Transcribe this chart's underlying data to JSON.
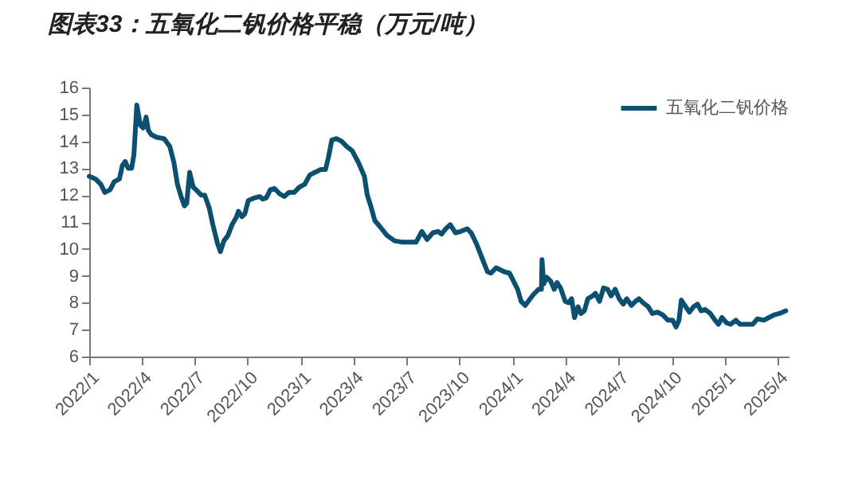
{
  "chart_data": {
    "type": "line",
    "title": "图表33：五氧化二钒价格平稳（万元/吨）",
    "x": [
      "2022-01-01",
      "2022-01-12",
      "2022-01-21",
      "2022-01-28",
      "2022-02-06",
      "2022-02-13",
      "2022-02-22",
      "2022-02-27",
      "2022-03-04",
      "2022-03-09",
      "2022-03-15",
      "2022-03-19",
      "2022-03-24",
      "2022-03-30",
      "2022-04-04",
      "2022-04-09",
      "2022-04-13",
      "2022-04-18",
      "2022-04-27",
      "2022-05-10",
      "2022-05-20",
      "2022-05-27",
      "2022-06-02",
      "2022-06-09",
      "2022-06-14",
      "2022-06-18",
      "2022-06-23",
      "2022-06-29",
      "2022-07-04",
      "2022-07-13",
      "2022-07-19",
      "2022-07-27",
      "2022-08-02",
      "2022-08-10",
      "2022-08-15",
      "2022-08-21",
      "2022-08-28",
      "2022-09-04",
      "2022-09-12",
      "2022-09-15",
      "2022-09-21",
      "2022-09-26",
      "2022-10-02",
      "2022-10-13",
      "2022-10-22",
      "2022-10-27",
      "2022-11-02",
      "2022-11-09",
      "2022-11-16",
      "2022-11-25",
      "2022-12-03",
      "2022-12-11",
      "2022-12-20",
      "2022-12-29",
      "2023-01-07",
      "2023-01-16",
      "2023-01-25",
      "2023-02-04",
      "2023-02-12",
      "2023-02-17",
      "2023-02-23",
      "2023-03-03",
      "2023-03-12",
      "2023-03-21",
      "2023-03-30",
      "2023-04-10",
      "2023-04-20",
      "2023-04-25",
      "2023-05-01",
      "2023-05-08",
      "2023-05-18",
      "2023-05-29",
      "2023-06-11",
      "2023-06-25",
      "2023-07-18",
      "2023-07-28",
      "2023-08-06",
      "2023-08-16",
      "2023-08-25",
      "2023-08-31",
      "2023-09-07",
      "2023-09-15",
      "2023-09-24",
      "2023-10-03",
      "2023-10-14",
      "2023-10-21",
      "2023-10-30",
      "2023-11-08",
      "2023-11-18",
      "2023-11-24",
      "2023-12-03",
      "2023-12-17",
      "2023-12-26",
      "2024-01-02",
      "2024-01-09",
      "2024-01-15",
      "2024-01-22",
      "2024-01-29",
      "2024-02-05",
      "2024-02-14",
      "2024-02-19",
      "2024-02-20",
      "2024-02-23",
      "2024-02-28",
      "2024-03-06",
      "2024-03-12",
      "2024-03-17",
      "2024-03-23",
      "2024-03-31",
      "2024-04-06",
      "2024-04-11",
      "2024-04-16",
      "2024-04-22",
      "2024-04-27",
      "2024-05-03",
      "2024-05-09",
      "2024-05-17",
      "2024-05-22",
      "2024-05-29",
      "2024-06-05",
      "2024-06-12",
      "2024-06-18",
      "2024-06-25",
      "2024-07-02",
      "2024-07-09",
      "2024-07-15",
      "2024-07-23",
      "2024-07-30",
      "2024-08-05",
      "2024-08-12",
      "2024-08-21",
      "2024-08-28",
      "2024-09-06",
      "2024-09-15",
      "2024-09-24",
      "2024-10-02",
      "2024-10-08",
      "2024-10-13",
      "2024-10-17",
      "2024-10-23",
      "2024-10-31",
      "2024-11-07",
      "2024-11-14",
      "2024-11-20",
      "2024-11-27",
      "2024-12-06",
      "2024-12-14",
      "2024-12-20",
      "2024-12-26",
      "2025-01-03",
      "2025-01-10",
      "2025-01-19",
      "2025-01-26",
      "2025-02-17",
      "2025-02-25",
      "2025-03-08",
      "2025-03-17",
      "2025-03-26",
      "2025-04-04",
      "2025-04-15"
    ],
    "series": [
      {
        "name": "五氧化二钒价格",
        "color": "#0b4f71",
        "values": [
          12.7,
          12.6,
          12.4,
          12.1,
          12.2,
          12.5,
          12.6,
          13.1,
          13.25,
          13.0,
          13.0,
          13.5,
          15.35,
          14.6,
          14.5,
          14.9,
          14.4,
          14.25,
          14.15,
          14.1,
          13.8,
          13.2,
          12.4,
          11.9,
          11.6,
          11.7,
          12.85,
          12.3,
          12.2,
          12.0,
          12.0,
          11.5,
          10.9,
          10.2,
          9.9,
          10.3,
          10.5,
          10.9,
          11.2,
          11.4,
          11.2,
          11.3,
          11.8,
          11.9,
          11.95,
          11.85,
          11.9,
          12.2,
          12.25,
          12.05,
          11.95,
          12.1,
          12.1,
          12.3,
          12.4,
          12.75,
          12.85,
          12.95,
          12.95,
          13.4,
          14.05,
          14.1,
          14.0,
          13.8,
          13.65,
          13.2,
          12.7,
          12.0,
          11.6,
          11.05,
          10.8,
          10.5,
          10.3,
          10.25,
          10.25,
          10.65,
          10.35,
          10.6,
          10.65,
          10.55,
          10.75,
          10.9,
          10.6,
          10.65,
          10.75,
          10.6,
          10.2,
          9.7,
          9.15,
          9.1,
          9.3,
          9.15,
          9.1,
          8.8,
          8.5,
          8.05,
          7.9,
          8.1,
          8.3,
          8.5,
          8.5,
          9.6,
          8.7,
          8.95,
          8.8,
          8.5,
          8.75,
          8.55,
          8.05,
          8.0,
          8.15,
          7.45,
          7.85,
          7.6,
          7.7,
          8.15,
          8.25,
          8.35,
          8.05,
          8.55,
          8.5,
          8.25,
          8.5,
          8.15,
          7.95,
          8.15,
          7.9,
          8.05,
          8.15,
          8.0,
          7.85,
          7.6,
          7.65,
          7.55,
          7.35,
          7.35,
          7.1,
          7.35,
          8.1,
          7.9,
          7.65,
          7.85,
          7.95,
          7.7,
          7.75,
          7.6,
          7.35,
          7.2,
          7.45,
          7.25,
          7.2,
          7.35,
          7.2,
          7.2,
          7.4,
          7.35,
          7.45,
          7.55,
          7.6,
          7.7
        ]
      }
    ],
    "xlim": [
      "2022-01-01",
      "2025-04-20"
    ],
    "xticks": [
      {
        "value": "2022-01-01",
        "label": "2022/1"
      },
      {
        "value": "2022-04-01",
        "label": "2022/4"
      },
      {
        "value": "2022-07-01",
        "label": "2022/7"
      },
      {
        "value": "2022-10-01",
        "label": "2022/10"
      },
      {
        "value": "2023-01-01",
        "label": "2023/1"
      },
      {
        "value": "2023-04-01",
        "label": "2023/4"
      },
      {
        "value": "2023-07-01",
        "label": "2023/7"
      },
      {
        "value": "2023-10-01",
        "label": "2023/10"
      },
      {
        "value": "2024-01-01",
        "label": "2024/1"
      },
      {
        "value": "2024-04-01",
        "label": "2024/4"
      },
      {
        "value": "2024-07-01",
        "label": "2024/7"
      },
      {
        "value": "2024-10-01",
        "label": "2024/10"
      },
      {
        "value": "2025-01-01",
        "label": "2025/1"
      },
      {
        "value": "2025-04-01",
        "label": "2025/4"
      }
    ],
    "ylim": [
      6,
      16
    ],
    "yticks": [
      6,
      7,
      8,
      9,
      10,
      11,
      12,
      13,
      14,
      15,
      16
    ],
    "grid": false,
    "legend": "top right",
    "marker": "none",
    "line_style": "solid"
  }
}
